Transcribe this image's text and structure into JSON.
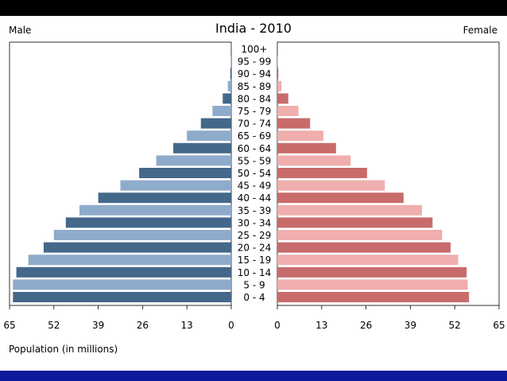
{
  "chart_data": {
    "type": "bar",
    "title": "India - 2010",
    "left_label": "Male",
    "right_label": "Female",
    "xlabel": "Population (in millions)",
    "xlim": [
      0,
      65
    ],
    "ticks": [
      65,
      52,
      39,
      26,
      13,
      0
    ],
    "ticks_right": [
      0,
      13,
      26,
      39,
      52,
      65
    ],
    "categories": [
      "100+",
      "95 - 99",
      "90 - 94",
      "85 - 89",
      "80 - 84",
      "75 - 79",
      "70 - 74",
      "65 - 69",
      "60 - 64",
      "55 - 59",
      "50 - 54",
      "45 - 49",
      "40 - 44",
      "35 - 39",
      "30 - 34",
      "25 - 29",
      "20 - 24",
      "15 - 19",
      "10 - 14",
      "5 - 9",
      "0 - 4"
    ],
    "series": [
      {
        "name": "Male",
        "values": [
          0.05,
          0.1,
          0.3,
          1.0,
          2.5,
          5.5,
          8.9,
          13.0,
          17.0,
          22.0,
          27.0,
          32.5,
          39.0,
          44.5,
          48.5,
          52.0,
          55.0,
          59.5,
          63.0,
          64.0,
          64.0
        ],
        "colors": [
          "#44688a",
          "#8fabcb"
        ]
      },
      {
        "name": "Female",
        "values": [
          0.05,
          0.1,
          0.3,
          1.2,
          3.2,
          6.2,
          9.6,
          13.5,
          17.2,
          21.5,
          26.3,
          31.5,
          37.0,
          42.4,
          45.5,
          48.3,
          50.8,
          53.0,
          55.5,
          55.8,
          56.2
        ],
        "colors": [
          "#c86b6b",
          "#f0aeae"
        ]
      }
    ],
    "grid": false
  }
}
